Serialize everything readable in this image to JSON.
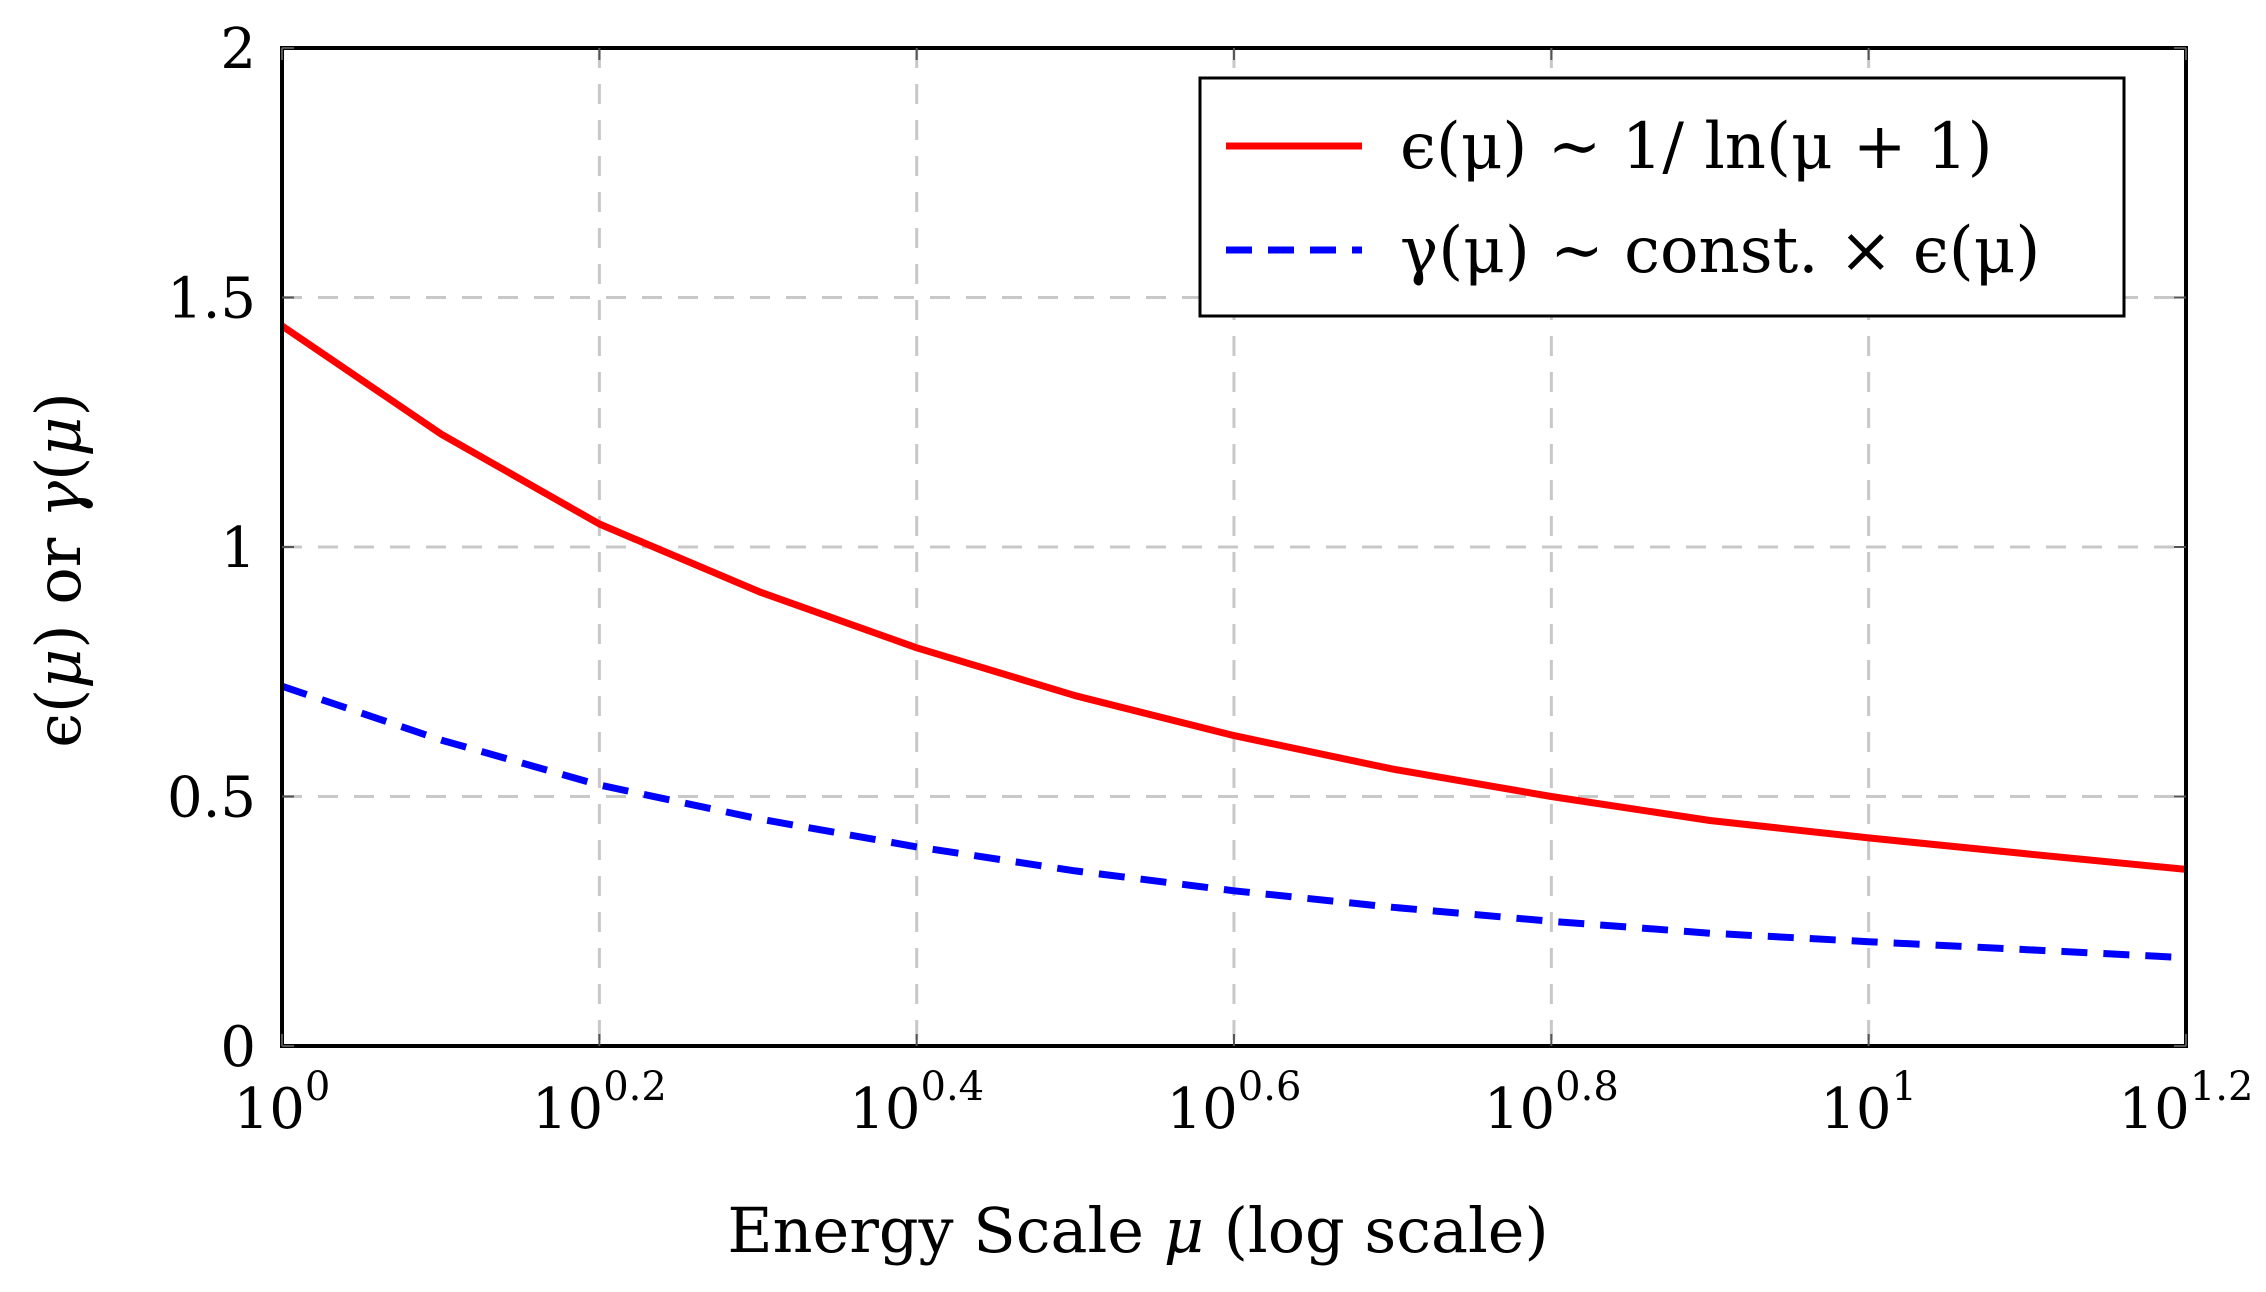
{
  "chart_data": {
    "type": "line",
    "title": "",
    "xlabel_parts": [
      "Energy Scale ",
      "μ",
      " (log scale)"
    ],
    "ylabel_parts": [
      "ϵ(",
      "μ",
      ") or ",
      "γ",
      "(",
      "μ",
      ")"
    ],
    "x_scale": "log",
    "xlim": [
      1,
      15.85
    ],
    "ylim": [
      0,
      2
    ],
    "grid": true,
    "grid_style": "dashed",
    "legend_position": "top-right",
    "x_ticks": [
      {
        "base": "10",
        "exp": "0",
        "value": 1
      },
      {
        "base": "10",
        "exp": "0.2",
        "value": 1.585
      },
      {
        "base": "10",
        "exp": "0.4",
        "value": 2.512
      },
      {
        "base": "10",
        "exp": "0.6",
        "value": 3.981
      },
      {
        "base": "10",
        "exp": "0.8",
        "value": 6.31
      },
      {
        "base": "10",
        "exp": "1",
        "value": 10
      },
      {
        "base": "10",
        "exp": "1.2",
        "value": 15.85
      }
    ],
    "y_ticks": [
      {
        "label": "0",
        "value": 0
      },
      {
        "label": "0.5",
        "value": 0.5
      },
      {
        "label": "1",
        "value": 1
      },
      {
        "label": "1.5",
        "value": 1.5
      },
      {
        "label": "2",
        "value": 2
      }
    ],
    "series": [
      {
        "legend_text": "ϵ(μ) ∼ 1/ ln(μ + 1)",
        "color": "#ff0000",
        "style": "solid",
        "x": [
          1,
          1.26,
          1.585,
          2.0,
          2.512,
          3.162,
          3.981,
          5.012,
          6.31,
          7.943,
          10,
          12.59,
          15.85
        ],
        "y": [
          1.443,
          1.226,
          1.046,
          0.91,
          0.798,
          0.702,
          0.622,
          0.555,
          0.5,
          0.452,
          0.417,
          0.385,
          0.354
        ]
      },
      {
        "legend_text": "γ(μ) ∼ const. × ϵ(μ)",
        "color": "#0000ff",
        "style": "dashed",
        "x": [
          1,
          1.26,
          1.585,
          2.0,
          2.512,
          3.162,
          3.981,
          5.012,
          6.31,
          7.943,
          10,
          12.59,
          15.85
        ],
        "y": [
          0.721,
          0.613,
          0.523,
          0.455,
          0.399,
          0.351,
          0.311,
          0.278,
          0.25,
          0.226,
          0.209,
          0.193,
          0.177
        ]
      }
    ]
  }
}
